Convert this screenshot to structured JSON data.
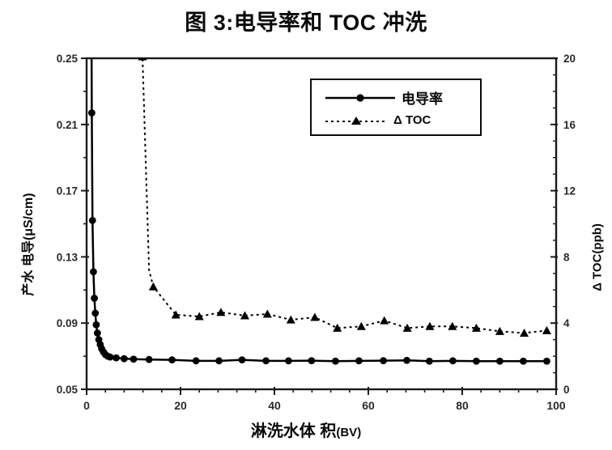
{
  "chart_data": {
    "type": "line",
    "title": "图 3:电导率和 TOC 冲洗",
    "x_axis": {
      "label_main": "淋洗水体 积",
      "label_unit": "(BV)",
      "min": 0,
      "max": 100,
      "tick_values": [
        0,
        20,
        40,
        60,
        80,
        100
      ],
      "tick_labels": [
        "0",
        "20",
        "40",
        "60",
        "80",
        "100"
      ],
      "minor_step": 4
    },
    "y_left": {
      "label": "产水 电导(μS/cm)",
      "min": 0.05,
      "max": 0.25,
      "tick_values": [
        0.05,
        0.09,
        0.13,
        0.17,
        0.21,
        0.25
      ],
      "tick_labels": [
        "0.05",
        "0.09",
        "0.13",
        "0.17",
        "0.21",
        "0.25"
      ],
      "minor_step": 0.02
    },
    "y_right": {
      "label": "Δ TOC(ppb)",
      "min": 0,
      "max": 20,
      "tick_values": [
        0,
        4,
        8,
        12,
        16,
        20
      ],
      "tick_labels": [
        "0",
        "4",
        "8",
        "12",
        "16",
        "20"
      ],
      "minor_step": 1
    },
    "grid": false,
    "legend_position": "top-center",
    "colors": {
      "series": "#000000",
      "axis": "#1a1a1a",
      "tick_text": "#2b2b2b"
    },
    "series": [
      {
        "name": "电导率",
        "axis": "left",
        "line": "solid",
        "marker": "circle",
        "color": "#000000",
        "points": [
          [
            1.0,
            0.3,
            0
          ],
          [
            1.1,
            0.217,
            1
          ],
          [
            1.25,
            0.152,
            1
          ],
          [
            1.45,
            0.121,
            1
          ],
          [
            1.65,
            0.105,
            1
          ],
          [
            1.85,
            0.096,
            1
          ],
          [
            2.05,
            0.089,
            1
          ],
          [
            2.3,
            0.084,
            1
          ],
          [
            2.6,
            0.08,
            1
          ],
          [
            2.9,
            0.077,
            1
          ],
          [
            3.2,
            0.0745,
            1
          ],
          [
            3.6,
            0.0725,
            1
          ],
          [
            4.0,
            0.071,
            1
          ],
          [
            4.5,
            0.07,
            1
          ],
          [
            5.0,
            0.0695,
            1
          ],
          [
            6.3,
            0.069,
            1
          ],
          [
            8.0,
            0.0685,
            1
          ],
          [
            10.0,
            0.0682,
            1
          ],
          [
            13.3,
            0.068,
            1
          ],
          [
            18.2,
            0.0678,
            1
          ],
          [
            23.3,
            0.0672,
            1
          ],
          [
            28.2,
            0.0672,
            1
          ],
          [
            33.1,
            0.0678,
            1
          ],
          [
            38.2,
            0.0672,
            1
          ],
          [
            43.0,
            0.0672,
            1
          ],
          [
            47.9,
            0.0673,
            1
          ],
          [
            53.0,
            0.067,
            1
          ],
          [
            58.0,
            0.0672,
            1
          ],
          [
            63.2,
            0.0673,
            1
          ],
          [
            68.2,
            0.0675,
            1
          ],
          [
            73.0,
            0.067,
            1
          ],
          [
            78.0,
            0.0672,
            1
          ],
          [
            83.0,
            0.067,
            1
          ],
          [
            88.0,
            0.067,
            1
          ],
          [
            93.0,
            0.067,
            1
          ],
          [
            98.0,
            0.067,
            1
          ]
        ]
      },
      {
        "name": "Δ TOC",
        "axis": "right",
        "line": "dashed",
        "marker": "triangle",
        "color": "#000000",
        "points": [
          [
            11.2,
            22.0,
            0
          ],
          [
            11.9,
            20.1,
            1
          ],
          [
            13.3,
            7.2,
            0
          ],
          [
            14.2,
            6.2,
            1
          ],
          [
            19.0,
            4.5,
            1
          ],
          [
            24.0,
            4.4,
            1
          ],
          [
            28.6,
            4.65,
            1
          ],
          [
            33.7,
            4.45,
            1
          ],
          [
            38.5,
            4.55,
            1
          ],
          [
            43.5,
            4.2,
            1
          ],
          [
            48.6,
            4.35,
            1
          ],
          [
            53.4,
            3.7,
            1
          ],
          [
            58.5,
            3.8,
            1
          ],
          [
            63.4,
            4.15,
            1
          ],
          [
            68.3,
            3.7,
            1
          ],
          [
            73.1,
            3.8,
            1
          ],
          [
            77.9,
            3.8,
            1
          ],
          [
            83.0,
            3.7,
            1
          ],
          [
            88.0,
            3.5,
            1
          ],
          [
            93.2,
            3.4,
            1
          ],
          [
            98.0,
            3.55,
            1
          ]
        ]
      }
    ]
  }
}
